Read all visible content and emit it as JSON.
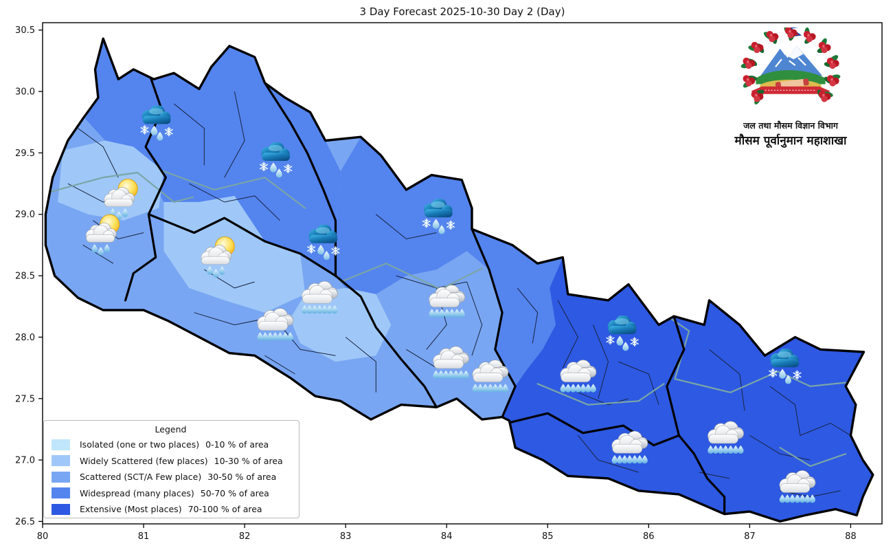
{
  "title": "3 Day Forecast 2025-10-30 Day 2 (Day)",
  "axes": {
    "x": {
      "min": 80,
      "max": 88.31,
      "ticks": [
        "80",
        "81",
        "82",
        "83",
        "84",
        "85",
        "86",
        "87",
        "88"
      ],
      "tick_values": [
        80,
        81,
        82,
        83,
        84,
        85,
        86,
        87,
        88
      ]
    },
    "y": {
      "min": 26.48,
      "max": 30.56,
      "ticks": [
        "30.5",
        "30.0",
        "29.5",
        "29.0",
        "28.5",
        "28.0",
        "27.5",
        "27.0",
        "26.5"
      ],
      "tick_values": [
        30.5,
        30.0,
        29.5,
        29.0,
        28.5,
        28.0,
        27.5,
        27.0,
        26.5
      ]
    }
  },
  "legend": {
    "title": "Legend",
    "entries": [
      {
        "label": "Isolated (one or two places)",
        "area": "0-10 % of area",
        "color": "#bfe6fa"
      },
      {
        "label": "Widely Scattered (few places)",
        "area": "10-30 % of area",
        "color": "#9fc8f8"
      },
      {
        "label": "Scattered (SCT/A Few place)",
        "area": "30-50 % of area",
        "color": "#79a6f2"
      },
      {
        "label": "Widespread (many places)",
        "area": "50-70 % of area",
        "color": "#5484ee"
      },
      {
        "label": "Extensive (Most places)",
        "area": "70-100 % of area",
        "color": "#2e59e2"
      }
    ]
  },
  "logo": {
    "line1": "जल तथा मौसम विज्ञान विभाग",
    "line2": "मौसम पूर्वानुमान महाशाखा"
  },
  "map": {
    "region_categories": {
      "far_west_and_terai": "Scattered (SCT/A Few place)",
      "far_west_mid_band": "Widely Scattered (few places)",
      "karnali_northwest": "Widespread (many places)",
      "central_north": "Widespread (many places)",
      "east_of_84_5": "Extensive (Most places)"
    },
    "icons": [
      {
        "type": "rain-snow",
        "lon": 81.13,
        "lat": 29.74
      },
      {
        "type": "rain-snow",
        "lon": 82.31,
        "lat": 29.44
      },
      {
        "type": "sun-cloud-rain",
        "lon": 80.79,
        "lat": 29.13
      },
      {
        "type": "sun-cloud-rain",
        "lon": 80.61,
        "lat": 28.84
      },
      {
        "type": "sun-cloud-rain",
        "lon": 81.75,
        "lat": 28.66
      },
      {
        "type": "rain-snow",
        "lon": 82.78,
        "lat": 28.77
      },
      {
        "type": "rain-snow",
        "lon": 83.92,
        "lat": 28.98
      },
      {
        "type": "rain",
        "lon": 82.75,
        "lat": 28.32
      },
      {
        "type": "rain",
        "lon": 82.31,
        "lat": 28.1
      },
      {
        "type": "rain",
        "lon": 84.01,
        "lat": 28.29
      },
      {
        "type": "rain",
        "lon": 84.05,
        "lat": 27.79
      },
      {
        "type": "rain",
        "lon": 84.44,
        "lat": 27.68
      },
      {
        "type": "rain",
        "lon": 85.31,
        "lat": 27.68
      },
      {
        "type": "rain-snow",
        "lon": 85.74,
        "lat": 28.03
      },
      {
        "type": "rain-snow",
        "lon": 87.35,
        "lat": 27.76
      },
      {
        "type": "rain",
        "lon": 85.82,
        "lat": 27.1
      },
      {
        "type": "rain",
        "lon": 86.77,
        "lat": 27.18
      },
      {
        "type": "rain",
        "lon": 87.48,
        "lat": 26.78
      }
    ]
  },
  "colors": {
    "isolated": "#bfe6fa",
    "widely_scattered": "#9fc8f8",
    "scattered": "#79a6f2",
    "widespread": "#5484ee",
    "extensive": "#2e59e2",
    "province_border": "#000000",
    "district_border": "#17243f",
    "basin_border": "#7aa5a7",
    "frame": "#000000"
  }
}
